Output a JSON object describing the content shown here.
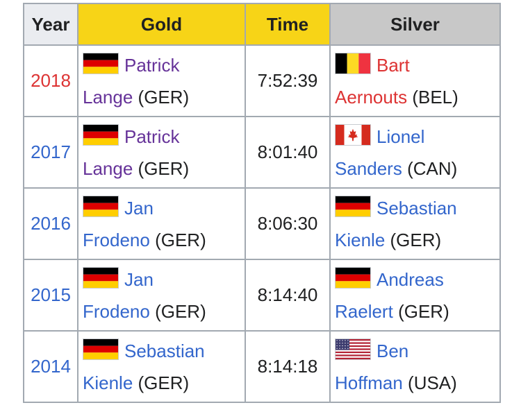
{
  "table": {
    "headers": {
      "year": "Year",
      "gold": "Gold",
      "time": "Time",
      "silver": "Silver"
    },
    "rows": [
      {
        "year": "2018",
        "year_color": "#d33",
        "gold": {
          "first": "Patrick",
          "last": "Lange",
          "nat": "(GER)",
          "flag": "flag-germany-icon",
          "color": "#663399"
        },
        "time": "7:52:39",
        "silver": {
          "first": "Bart",
          "last": "Aernouts",
          "nat": "(BEL)",
          "flag": "flag-belgium-icon",
          "color": "#d33"
        }
      },
      {
        "year": "2017",
        "year_color": "#3366cc",
        "gold": {
          "first": "Patrick",
          "last": "Lange",
          "nat": "(GER)",
          "flag": "flag-germany-icon",
          "color": "#663399"
        },
        "time": "8:01:40",
        "silver": {
          "first": "Lionel",
          "last": "Sanders",
          "nat": "(CAN)",
          "flag": "flag-canada-icon",
          "color": "#3366cc"
        }
      },
      {
        "year": "2016",
        "year_color": "#3366cc",
        "gold": {
          "first": "Jan",
          "last": "Frodeno",
          "nat": "(GER)",
          "flag": "flag-germany-icon",
          "color": "#3366cc"
        },
        "time": "8:06:30",
        "silver": {
          "first": "Sebastian",
          "last": "Kienle",
          "nat": "(GER)",
          "flag": "flag-germany-icon",
          "color": "#3366cc"
        }
      },
      {
        "year": "2015",
        "year_color": "#3366cc",
        "gold": {
          "first": "Jan",
          "last": "Frodeno",
          "nat": "(GER)",
          "flag": "flag-germany-icon",
          "color": "#3366cc"
        },
        "time": "8:14:40",
        "silver": {
          "first": "Andreas",
          "last": "Raelert",
          "nat": "(GER)",
          "flag": "flag-germany-icon",
          "color": "#3366cc"
        }
      },
      {
        "year": "2014",
        "year_color": "#3366cc",
        "gold": {
          "first": "Sebastian",
          "last": "Kienle",
          "nat": "(GER)",
          "flag": "flag-germany-icon",
          "color": "#3366cc"
        },
        "time": "8:14:18",
        "silver": {
          "first": "Ben",
          "last": "Hoffman",
          "nat": "(USA)",
          "flag": "flag-usa-icon",
          "color": "#3366cc"
        }
      }
    ]
  },
  "colors": {
    "gold_header": "#f7d417",
    "silver_header": "#c8c8c8",
    "year_header": "#eaecf0",
    "border": "#a2a9b1"
  }
}
